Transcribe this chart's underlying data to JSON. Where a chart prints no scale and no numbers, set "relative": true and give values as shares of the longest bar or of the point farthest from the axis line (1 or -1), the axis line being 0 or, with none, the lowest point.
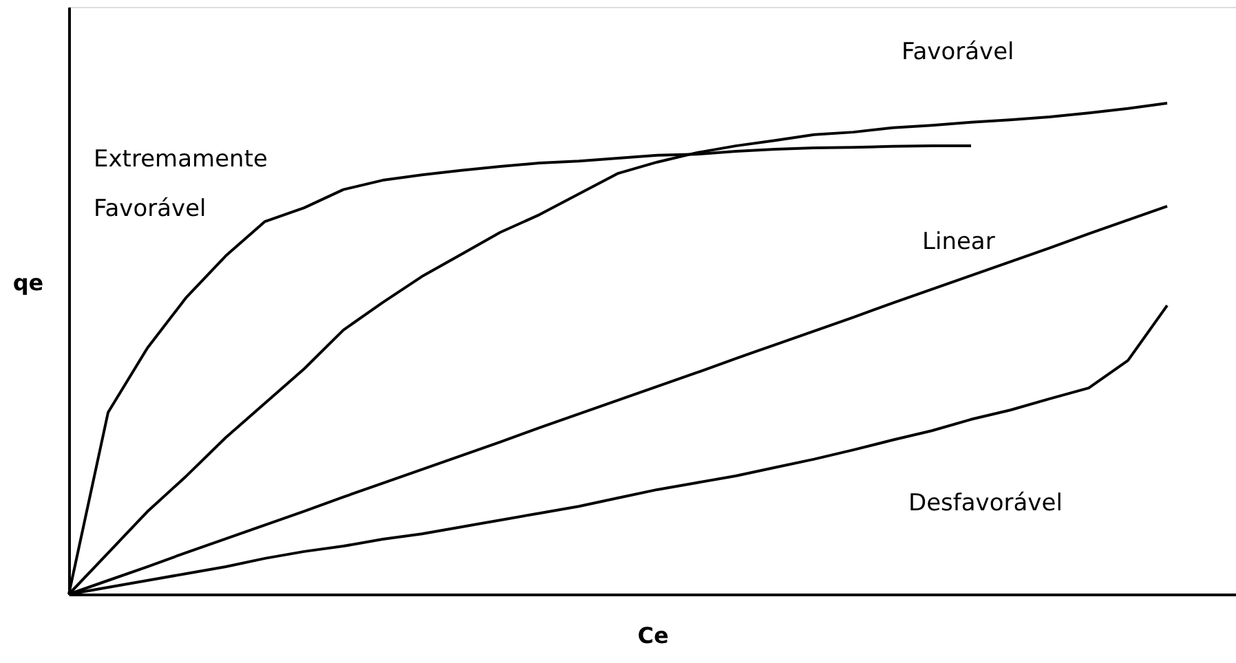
{
  "chart_data": {
    "type": "line",
    "relative": true,
    "xlabel": "Ce",
    "ylabel": "qe",
    "categories": [
      null,
      null,
      null,
      null,
      null,
      null,
      null,
      null,
      null,
      null,
      null,
      null,
      null,
      null,
      null,
      null,
      null,
      null,
      null,
      null,
      null,
      null,
      null,
      null,
      null,
      null,
      null,
      null,
      null
    ],
    "tick_labels": false,
    "grid": false,
    "legend": false,
    "marker": "none",
    "line_style": "solid",
    "series": [
      {
        "name": "Extremamente Favorável",
        "color": "#000000",
        "values": [
          0,
          0.37,
          0.501,
          0.605,
          0.689,
          0.759,
          0.787,
          0.824,
          0.843,
          0.854,
          0.863,
          0.871,
          0.878,
          0.882,
          0.888,
          0.894,
          0.896,
          0.902,
          0.906,
          0.909,
          0.91,
          0.912,
          0.913,
          0.913,
          null,
          null,
          null,
          null,
          null
        ]
      },
      {
        "name": "Favorável",
        "color": "#000000",
        "values": [
          0,
          0.084,
          0.168,
          0.241,
          0.319,
          0.389,
          0.459,
          0.538,
          0.594,
          0.647,
          0.692,
          0.737,
          0.773,
          0.815,
          0.857,
          0.88,
          0.899,
          0.913,
          0.924,
          0.936,
          0.941,
          0.95,
          0.955,
          0.961,
          0.966,
          0.972,
          0.98,
          0.989,
          1
        ]
      },
      {
        "name": "Linear",
        "color": "#000000",
        "values": [
          0,
          0.028,
          0.056,
          0.085,
          0.113,
          0.141,
          0.169,
          0.198,
          0.226,
          0.254,
          0.282,
          0.31,
          0.339,
          0.367,
          0.395,
          0.423,
          0.451,
          0.48,
          0.508,
          0.536,
          0.564,
          0.593,
          0.621,
          0.649,
          0.677,
          0.705,
          0.734,
          0.762,
          0.79
        ]
      },
      {
        "name": "Desfavorável",
        "color": "#000000",
        "values": [
          0,
          0.014,
          0.028,
          0.042,
          0.056,
          0.073,
          0.087,
          0.098,
          0.112,
          0.123,
          0.137,
          0.151,
          0.165,
          0.179,
          0.196,
          0.213,
          0.227,
          0.241,
          0.258,
          0.275,
          0.294,
          0.314,
          0.333,
          0.356,
          0.375,
          0.398,
          0.42,
          0.476,
          0.588
        ]
      }
    ]
  }
}
